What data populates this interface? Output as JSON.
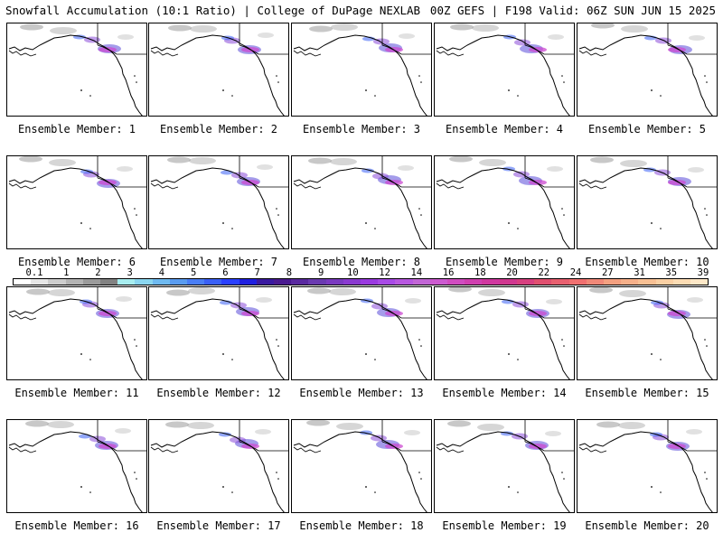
{
  "header": {
    "left": "Snowfall Accumulation (10:1 Ratio) | College of DuPage NEXLAB",
    "right": "00Z GEFS | F198 Valid: 06Z SUN JUN 15 2025"
  },
  "panel_label_prefix": "Ensemble Member: ",
  "members": [
    1,
    2,
    3,
    4,
    5,
    6,
    7,
    8,
    9,
    10,
    11,
    12,
    13,
    14,
    15,
    16,
    17,
    18,
    19,
    20
  ],
  "legend": {
    "ticks": [
      "0.1",
      "1",
      "2",
      "3",
      "4",
      "5",
      "6",
      "7",
      "8",
      "9",
      "10",
      "12",
      "14",
      "16",
      "18",
      "20",
      "22",
      "24",
      "27",
      "31",
      "35",
      "39"
    ],
    "colors": [
      "#ffffff",
      "#e6e6e6",
      "#cdcdcd",
      "#b4b4b4",
      "#9b9b9b",
      "#828282",
      "#a8eef0",
      "#8ad6f0",
      "#6fbaf0",
      "#5a9cf0",
      "#4a7ef5",
      "#3a60f5",
      "#2a40ff",
      "#2020e0",
      "#3a1aa0",
      "#4a1a90",
      "#5a2aa0",
      "#6a3ab0",
      "#7a3ac0",
      "#8a3ad0",
      "#9a3ae0",
      "#a84ae6",
      "#b858e0",
      "#c266d6",
      "#cc5ad0",
      "#d04cc0",
      "#d040b0",
      "#d038a0",
      "#d03890",
      "#d84080",
      "#e05070",
      "#e86070",
      "#f07070",
      "#f08878",
      "#f4a080",
      "#f6b08a",
      "#f8c094",
      "#fad0a4",
      "#fcdcb4",
      "#fee8c8"
    ]
  }
}
